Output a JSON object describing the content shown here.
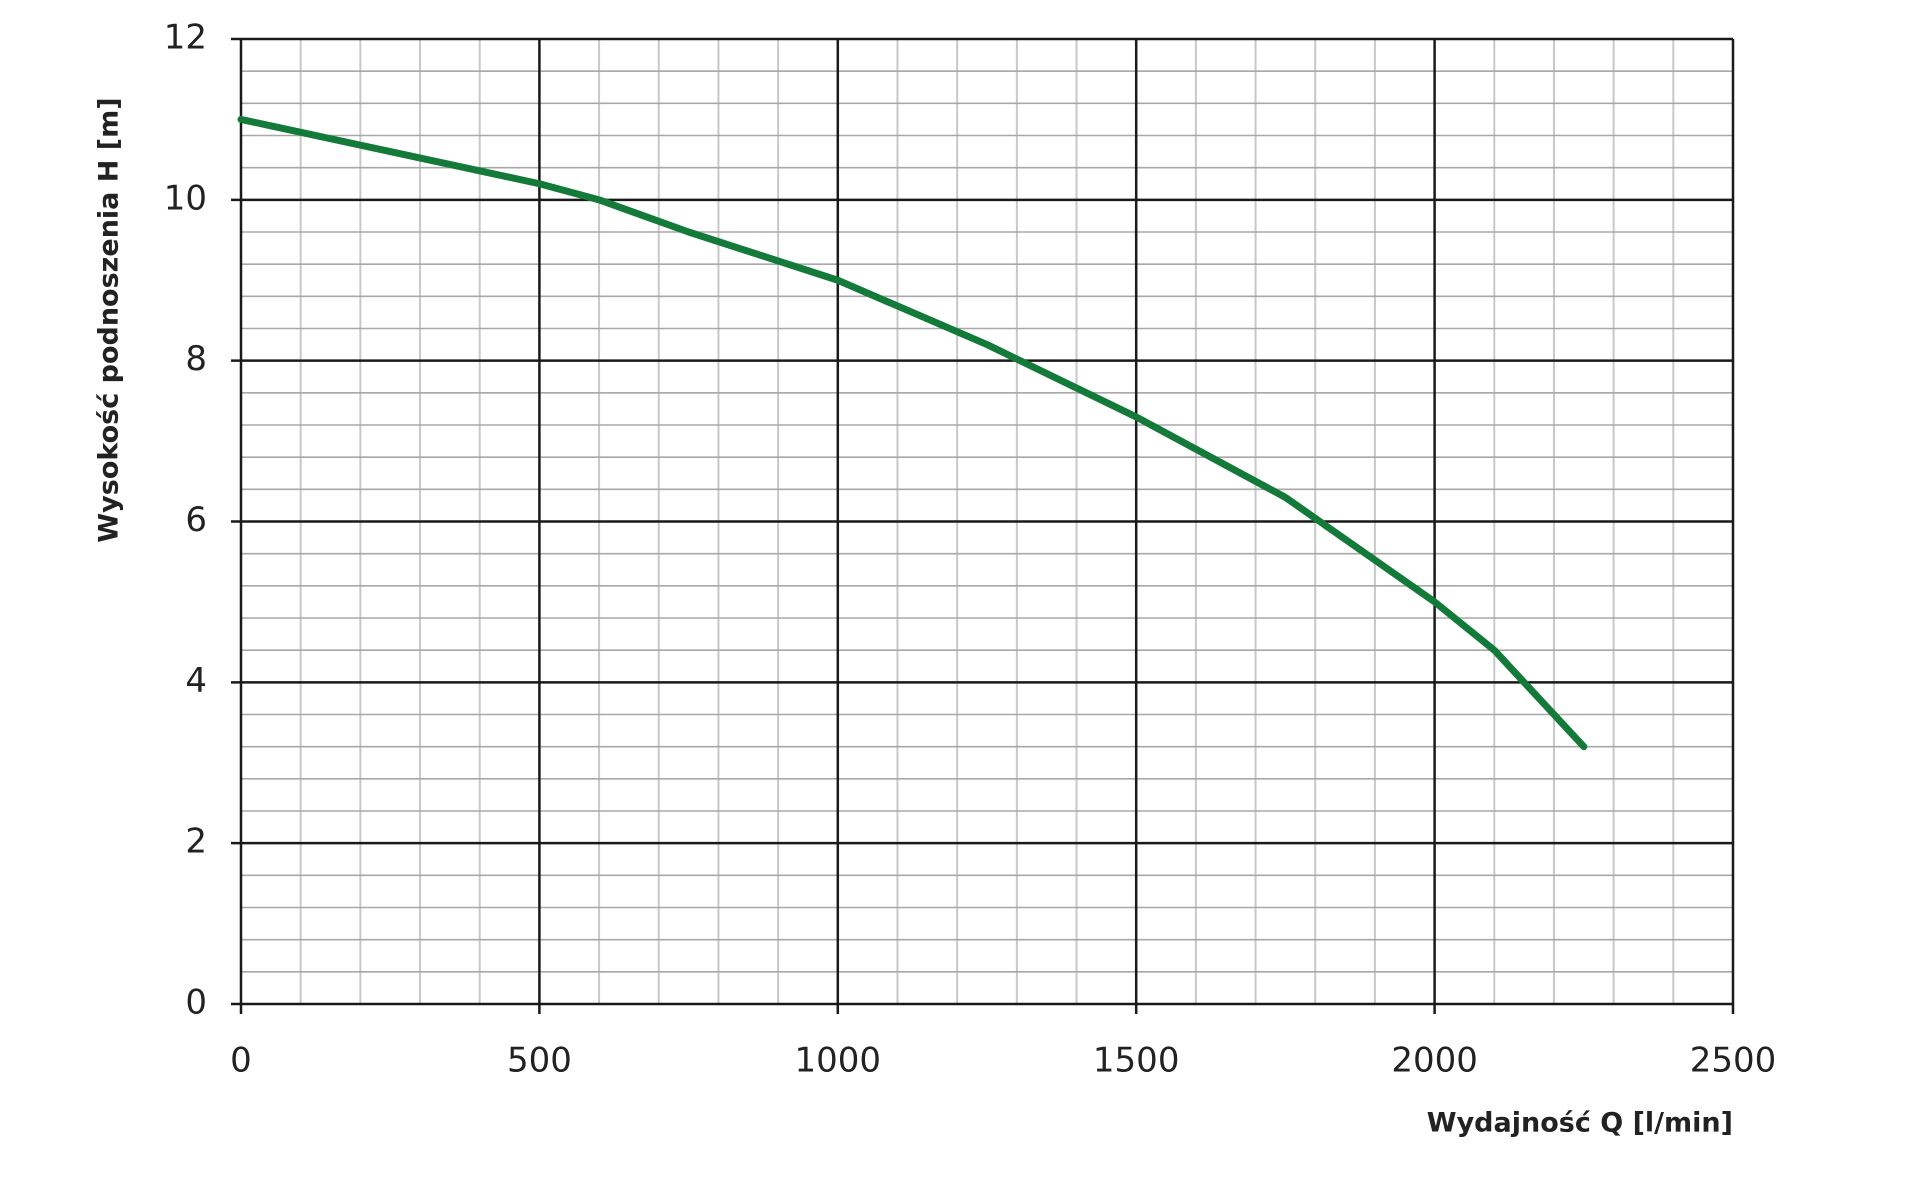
{
  "chart_data": {
    "type": "line",
    "x_label": "Wydajność Q [l/min]",
    "y_label": "Wysokość podnoszenia H [m]",
    "x": [
      0,
      250,
      500,
      600,
      750,
      1000,
      1250,
      1500,
      1750,
      2000,
      2100,
      2150,
      2250
    ],
    "series": [
      {
        "color": "#137a3a",
        "values": [
          11.0,
          10.6,
          10.2,
          10.0,
          9.6,
          9.0,
          8.2,
          7.3,
          6.3,
          5.0,
          4.4,
          4.0,
          3.2
        ]
      }
    ],
    "xlim": [
      0,
      2500
    ],
    "ylim": [
      0,
      12
    ],
    "xticks": [
      0,
      500,
      1000,
      1500,
      2000,
      2500
    ],
    "yticks": [
      0,
      2,
      4,
      6,
      8,
      10,
      12
    ],
    "minor_xticks": [
      100,
      200,
      300,
      400,
      600,
      700,
      800,
      900,
      1100,
      1200,
      1300,
      1400,
      1600,
      1700,
      1800,
      1900,
      2100,
      2200,
      2300,
      2400
    ],
    "minor_yticks": [
      0.4,
      0.8,
      1.2,
      1.6,
      2.4,
      2.8,
      3.2,
      3.6,
      4.4,
      4.8,
      5.2,
      5.6,
      6.4,
      6.8,
      7.2,
      7.6,
      8.4,
      8.8,
      9.2,
      9.6,
      10.4,
      10.8,
      11.2,
      11.6
    ],
    "grid": true
  }
}
